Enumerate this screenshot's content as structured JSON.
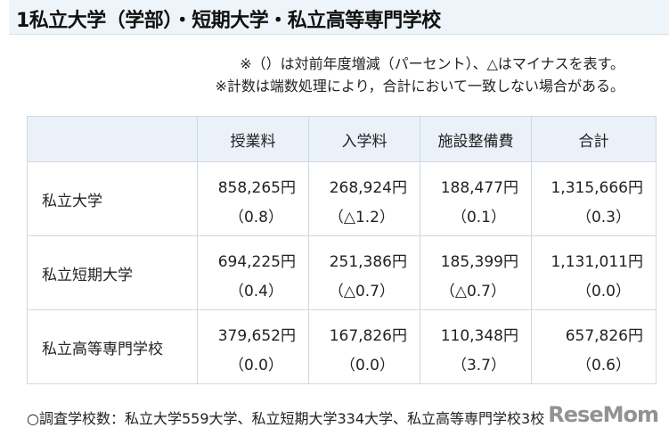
{
  "title": "1私立大学（学部）・短期大学・私立高等専門学校",
  "notes": [
    "※（）は対前年度増減（パーセント）、△はマイナスを表す。",
    "※計数は端数処理により，合計において一致しない場合がある。"
  ],
  "table": {
    "headers": [
      "",
      "授業料",
      "入学料",
      "施設整備費",
      "合計"
    ],
    "rows": [
      {
        "label": "私立大学",
        "cells": [
          {
            "value": "858,265円",
            "change": "（0.8）"
          },
          {
            "value": "268,924円",
            "change": "（△1.2）"
          },
          {
            "value": "188,477円",
            "change": "（0.1）"
          },
          {
            "value": "1,315,666円",
            "change": "（0.3）"
          }
        ]
      },
      {
        "label": "私立短期大学",
        "cells": [
          {
            "value": "694,225円",
            "change": "（0.4）"
          },
          {
            "value": "251,386円",
            "change": "（△0.7）"
          },
          {
            "value": "185,399円",
            "change": "（△0.7）"
          },
          {
            "value": "1,131,011円",
            "change": "（0.0）"
          }
        ]
      },
      {
        "label": "私立高等専門学校",
        "cells": [
          {
            "value": "379,652円",
            "change": "（0.0）"
          },
          {
            "value": "167,826円",
            "change": "（0.0）"
          },
          {
            "value": "110,348円",
            "change": "（3.7）"
          },
          {
            "value": "657,826円",
            "change": "（0.6）"
          }
        ]
      }
    ]
  },
  "footer": "○調査学校数：私立大学559大学、私立短期大学334大学、私立高等専門学校3校",
  "watermark": "ReseMom"
}
